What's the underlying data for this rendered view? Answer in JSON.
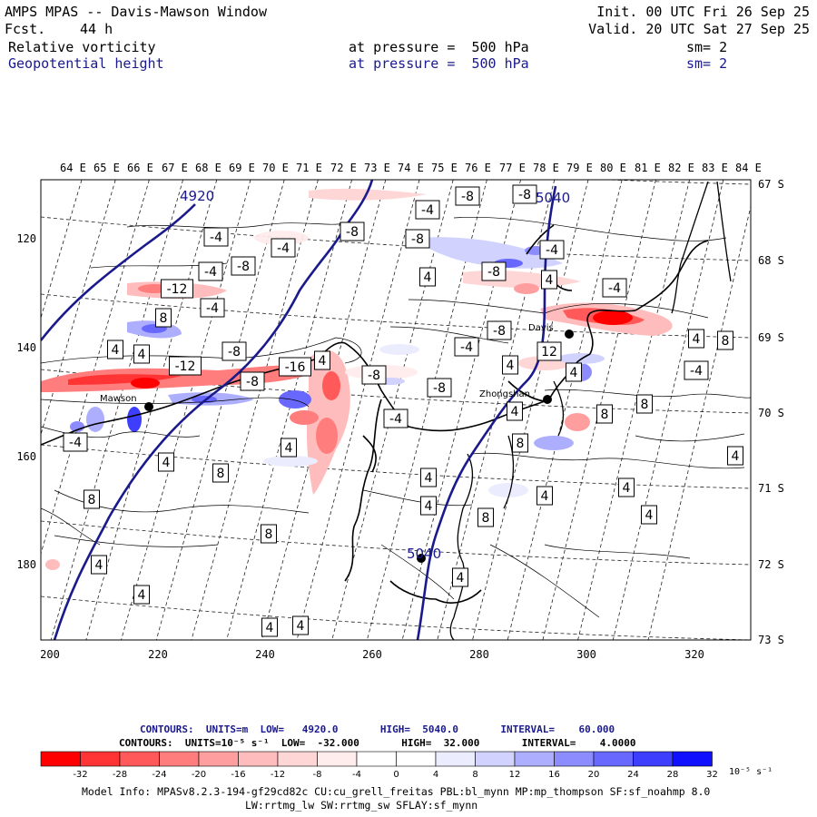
{
  "header": {
    "title": "AMPS MPAS -- Davis-Mawson Window",
    "fcst_label": "Fcst.",
    "fcst_value": "44 h",
    "init": "Init. 00 UTC Fri 26 Sep 25",
    "valid": "Valid. 20 UTC Sat 27 Sep 25",
    "field1": {
      "name": "Relative vorticity",
      "level": "at pressure =  500 hPa",
      "sm": "sm= 2"
    },
    "field2": {
      "name": "Geopotential height",
      "level": "at pressure =  500 hPa",
      "sm": "sm= 2"
    }
  },
  "map": {
    "top_lon_labels": [
      "64 E",
      "65 E",
      "66 E",
      "67 E",
      "68 E",
      "69 E",
      "70 E",
      "71 E",
      "72 E",
      "73 E",
      "74 E",
      "75 E",
      "76 E",
      "77 E",
      "78 E",
      "79 E",
      "80 E",
      "81 E",
      "82 E",
      "83 E",
      "84 E"
    ],
    "right_lat_labels": [
      "67 S",
      "68 S",
      "69 S",
      "70 S",
      "71 S",
      "72 S",
      "73 S"
    ],
    "left_y_labels": [
      "120",
      "140",
      "160",
      "180"
    ],
    "bottom_x_labels": [
      "200",
      "220",
      "240",
      "260",
      "280",
      "300",
      "320"
    ],
    "height_contour_labels": [
      "4920",
      "5040",
      "5040"
    ],
    "station_labels": [
      "Davis",
      "Zhongshan",
      "Mawson"
    ],
    "vort_labels": [
      "-4",
      "-8",
      "-12",
      "-16",
      "4",
      "8",
      "12"
    ]
  },
  "contours_info": {
    "line1": "CONTOURS:  UNITS=m  LOW=   4920.0       HIGH=  5040.0       INTERVAL=    60.000",
    "line2": "CONTOURS:  UNITS=10⁻⁵ s⁻¹  LOW=  -32.000       HIGH=  32.000       INTERVAL=    4.0000"
  },
  "colorbar": {
    "ticks": [
      "-32",
      "-28",
      "-24",
      "-20",
      "-16",
      "-12",
      "-8",
      "-4",
      "0",
      "4",
      "8",
      "12",
      "16",
      "20",
      "24",
      "28",
      "32"
    ],
    "units": "10⁻⁵ s⁻¹",
    "colors": [
      "#ff0000",
      "#ff3535",
      "#ff5959",
      "#ff7d7d",
      "#ff9e9e",
      "#ffbcbc",
      "#ffd6d6",
      "#ffecec",
      "#ffffff",
      "#ffffff",
      "#ececff",
      "#d2d2ff",
      "#aeaeff",
      "#8c8cff",
      "#6868ff",
      "#3e3eff",
      "#1010ff"
    ]
  },
  "model_info": {
    "line1": "Model Info: MPASv8.2.3-194-gf29cd82c CU:cu_grell_freitas PBL:bl_mynn MP:mp_thompson SF:sf_noahmp 8.0",
    "line2": "LW:rrtmg_lw SW:rrtmg_sw SFLAY:sf_mynn"
  }
}
